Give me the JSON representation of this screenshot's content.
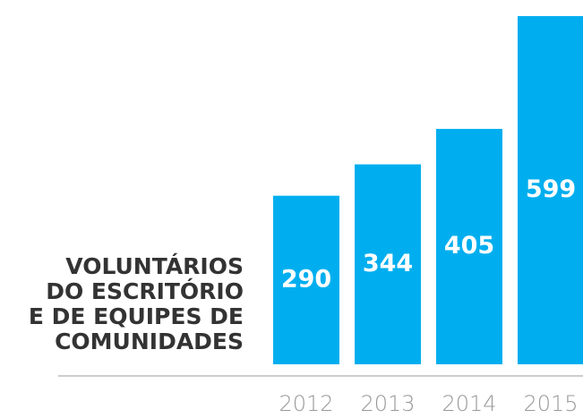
{
  "chart_data": {
    "type": "bar",
    "title": [
      "VOLUNTÁRIOS",
      "DO ESCRITÓRIO",
      "E DE EQUIPES DE",
      "COMUNIDADES"
    ],
    "categories": [
      "2012",
      "2013",
      "2014",
      "2015"
    ],
    "values": [
      290,
      344,
      405,
      599
    ],
    "color": "#00aeef"
  }
}
